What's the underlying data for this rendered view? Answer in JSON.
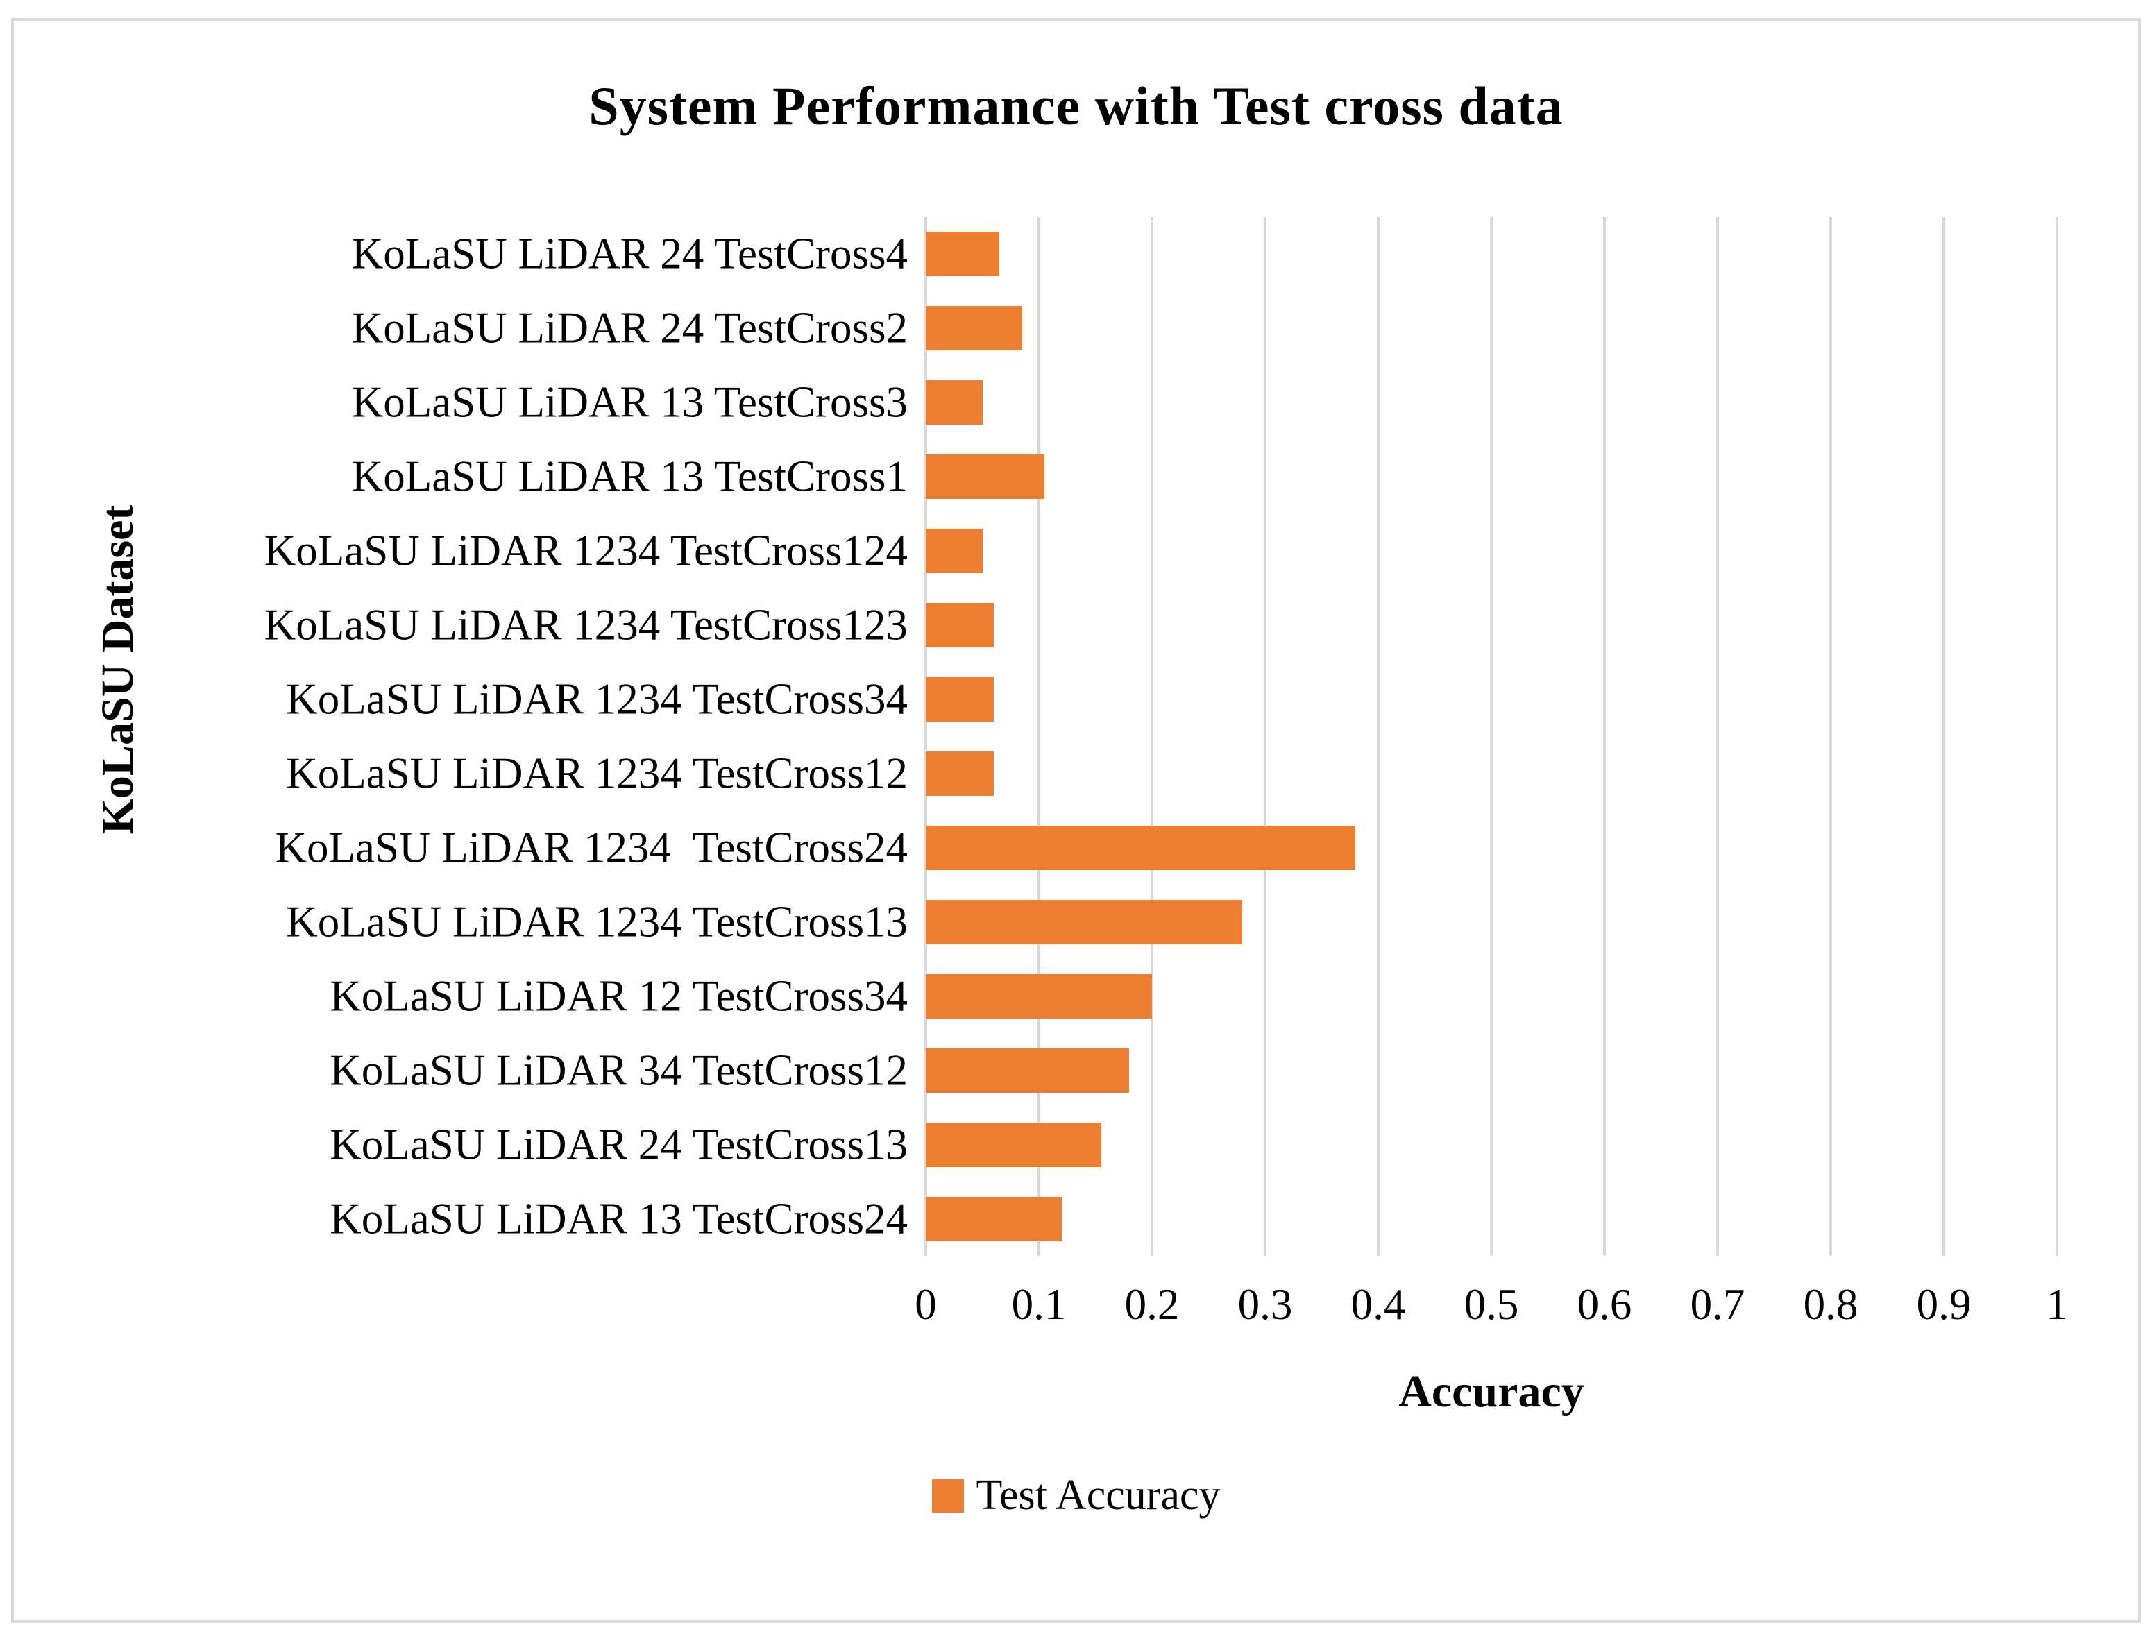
{
  "title": "System Performance with Test cross data",
  "legend": {
    "label": "Test Accuracy"
  },
  "colors": {
    "bar": "#ed7d31",
    "gridline": "#d9d9d9",
    "border": "#d9d9d9",
    "text": "#000000"
  },
  "chart_data": {
    "type": "bar",
    "orientation": "horizontal",
    "title": "System Performance with Test cross data",
    "xlabel": "Accuracy",
    "ylabel": "KoLaSU Dataset",
    "xlim": [
      0,
      1
    ],
    "x_ticks": [
      "0",
      "0.1",
      "0.2",
      "0.3",
      "0.4",
      "0.5",
      "0.6",
      "0.7",
      "0.8",
      "0.9",
      "1"
    ],
    "grid": true,
    "legend_position": "bottom",
    "series_name": "Test Accuracy",
    "categories": [
      "KoLaSU LiDAR 24 TestCross4",
      "KoLaSU LiDAR 24 TestCross2",
      "KoLaSU LiDAR 13 TestCross3",
      "KoLaSU LiDAR 13 TestCross1",
      "KoLaSU LiDAR 1234 TestCross124",
      "KoLaSU LiDAR 1234 TestCross123",
      "KoLaSU LiDAR 1234 TestCross34",
      "KoLaSU LiDAR 1234 TestCross12",
      "KoLaSU LiDAR 1234  TestCross24",
      "KoLaSU LiDAR 1234 TestCross13",
      "KoLaSU LiDAR 12 TestCross34",
      "KoLaSU LiDAR 34 TestCross12",
      "KoLaSU LiDAR 24 TestCross13",
      "KoLaSU LiDAR 13 TestCross24"
    ],
    "values": [
      0.065,
      0.085,
      0.05,
      0.105,
      0.05,
      0.06,
      0.06,
      0.06,
      0.38,
      0.28,
      0.2,
      0.18,
      0.155,
      0.12
    ]
  }
}
